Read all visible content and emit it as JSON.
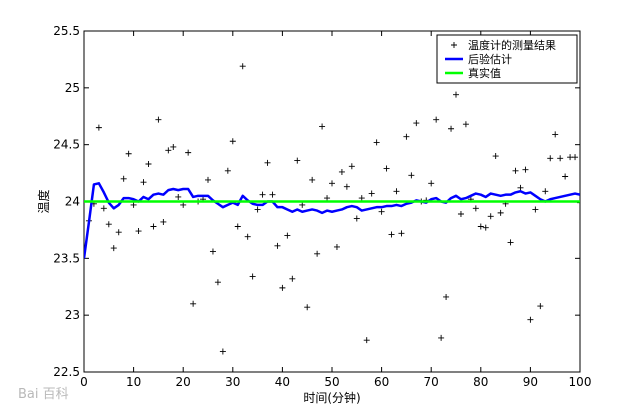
{
  "chart_data": {
    "type": "line",
    "title": "",
    "xlabel": "时间(分钟)",
    "ylabel": "温度",
    "xlim": [
      0,
      100
    ],
    "ylim": [
      22.5,
      25.5
    ],
    "xticks": [
      "0",
      "10",
      "20",
      "30",
      "40",
      "50",
      "60",
      "70",
      "80",
      "90",
      "100"
    ],
    "yticks": [
      "22.5",
      "23",
      "23.5",
      "24",
      "24.5",
      "25",
      "25.5"
    ],
    "grid": false,
    "legend_position": "top-right",
    "series": [
      {
        "name": "温度计的测量结果",
        "style": "markers-plus",
        "color": "#000000",
        "x": [
          1,
          2,
          3,
          4,
          5,
          6,
          7,
          8,
          9,
          10,
          11,
          12,
          13,
          14,
          15,
          16,
          17,
          18,
          19,
          20,
          21,
          22,
          23,
          24,
          25,
          26,
          27,
          28,
          29,
          30,
          31,
          32,
          33,
          34,
          35,
          36,
          37,
          38,
          39,
          40,
          41,
          42,
          43,
          44,
          45,
          46,
          47,
          48,
          49,
          50,
          51,
          52,
          53,
          54,
          55,
          56,
          57,
          58,
          59,
          60,
          61,
          62,
          63,
          64,
          65,
          66,
          67,
          68,
          69,
          70,
          71,
          72,
          73,
          74,
          75,
          76,
          77,
          78,
          79,
          80,
          81,
          82,
          83,
          84,
          85,
          86,
          87,
          88,
          89,
          90,
          91,
          92,
          93,
          94,
          95,
          96,
          97,
          98,
          99,
          100
        ],
        "y": [
          23.83,
          23.98,
          24.65,
          23.94,
          23.8,
          23.59,
          23.73,
          24.2,
          24.42,
          23.97,
          23.74,
          24.17,
          24.33,
          23.78,
          24.72,
          23.82,
          24.45,
          24.48,
          24.04,
          23.97,
          24.43,
          23.1,
          24.0,
          24.02,
          24.19,
          23.56,
          23.29,
          22.68,
          24.27,
          24.53,
          23.78,
          25.19,
          23.69,
          23.34,
          23.93,
          24.06,
          24.34,
          24.06,
          23.61,
          23.24,
          23.7,
          23.32,
          24.36,
          23.97,
          23.07,
          24.19,
          23.54,
          24.66,
          24.03,
          24.16,
          23.6,
          24.26,
          24.13,
          24.31,
          23.85,
          24.03,
          22.78,
          24.07,
          24.52,
          23.91,
          24.29,
          23.71,
          24.09,
          23.72,
          24.57,
          24.23,
          24.69,
          24.0,
          24.01,
          24.16,
          24.72,
          22.8,
          23.16,
          24.64,
          24.94,
          23.89,
          24.68,
          24.02,
          23.94,
          23.78,
          23.77,
          23.87,
          24.4,
          23.9,
          23.98,
          23.64,
          24.27,
          24.12,
          24.28,
          22.96,
          23.93,
          23.08,
          24.09,
          24.38,
          24.59,
          24.38,
          24.22,
          24.39,
          24.39,
          23.99
        ]
      },
      {
        "name": "后验估计",
        "style": "line",
        "color": "#0000ff",
        "x": [
          0,
          1,
          2,
          3,
          4,
          5,
          6,
          7,
          8,
          9,
          10,
          11,
          12,
          13,
          14,
          15,
          16,
          17,
          18,
          19,
          20,
          21,
          22,
          23,
          24,
          25,
          26,
          27,
          28,
          29,
          30,
          31,
          32,
          33,
          34,
          35,
          36,
          37,
          38,
          39,
          40,
          41,
          42,
          43,
          44,
          45,
          46,
          47,
          48,
          49,
          50,
          51,
          52,
          53,
          54,
          55,
          56,
          57,
          58,
          59,
          60,
          61,
          62,
          63,
          64,
          65,
          66,
          67,
          68,
          69,
          70,
          71,
          72,
          73,
          74,
          75,
          76,
          77,
          78,
          79,
          80,
          81,
          82,
          83,
          84,
          85,
          86,
          87,
          88,
          89,
          90,
          91,
          92,
          93,
          94,
          95,
          96,
          97,
          98,
          99,
          100
        ],
        "y": [
          23.5,
          23.82,
          24.15,
          24.16,
          24.08,
          23.99,
          23.94,
          23.97,
          24.03,
          24.03,
          24.02,
          24.0,
          24.04,
          24.02,
          24.06,
          24.07,
          24.06,
          24.1,
          24.11,
          24.1,
          24.11,
          24.11,
          24.04,
          24.05,
          24.05,
          24.05,
          24.01,
          23.98,
          23.95,
          23.97,
          23.99,
          23.97,
          24.05,
          24.01,
          23.98,
          23.97,
          23.97,
          24.0,
          24.0,
          23.95,
          23.95,
          23.93,
          23.91,
          23.93,
          23.91,
          23.92,
          23.93,
          23.92,
          23.9,
          23.92,
          23.91,
          23.92,
          23.93,
          23.95,
          23.96,
          23.95,
          23.92,
          23.93,
          23.94,
          23.95,
          23.95,
          23.96,
          23.96,
          23.97,
          23.96,
          23.98,
          23.99,
          24.01,
          24.0,
          23.99,
          24.02,
          24.03,
          24.0,
          23.99,
          24.03,
          24.05,
          24.02,
          24.03,
          24.05,
          24.07,
          24.06,
          24.04,
          24.07,
          24.06,
          24.05,
          24.06,
          24.06,
          24.08,
          24.09,
          24.07,
          24.08,
          24.05,
          24.02,
          24.0,
          24.02,
          24.03,
          24.04,
          24.05,
          24.06,
          24.07,
          24.06
        ]
      },
      {
        "name": "真实值",
        "style": "line",
        "color": "#00ff00",
        "x": [
          0,
          100
        ],
        "y": [
          24.0,
          24.0
        ]
      }
    ]
  },
  "watermark": "Bai 百科"
}
